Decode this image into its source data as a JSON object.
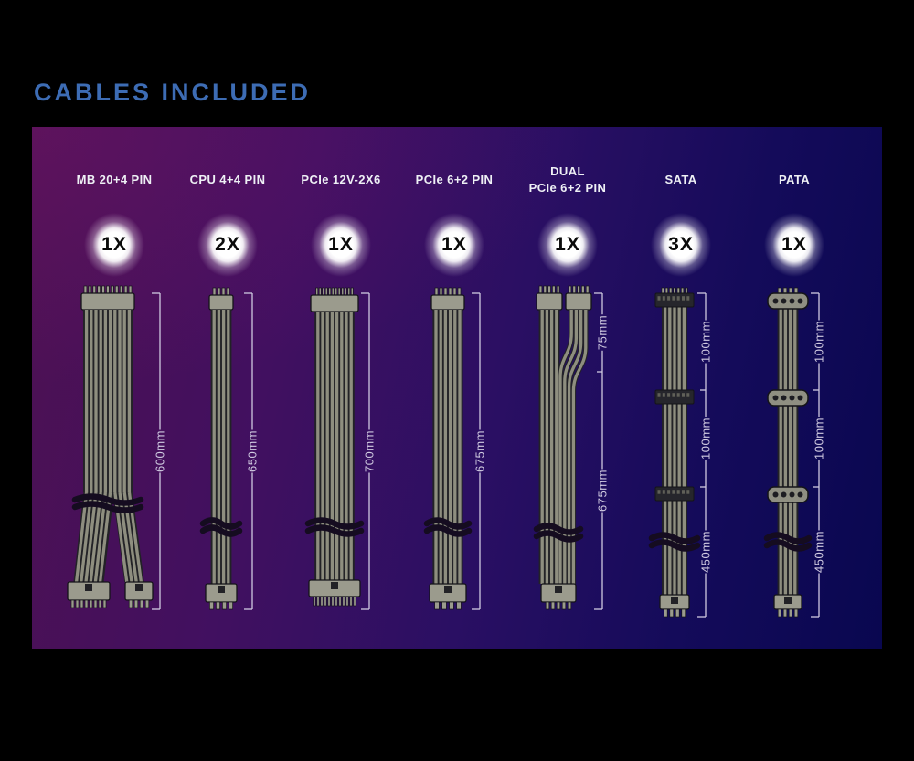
{
  "title": "CABLES INCLUDED",
  "colors": {
    "title": "#3d6cb4",
    "header_text": "#eef0f5",
    "badge_text": "#0a0a0a",
    "strand": "#8e8e7f",
    "strand_gap": "#222226",
    "connector": "#9b9b8d",
    "outline": "#141418",
    "sata_connector": "#26262c",
    "molex_connector": "#8f8f82",
    "tie": "#150c20",
    "measure": "#cfc9e0",
    "panel_left": "#4e1152",
    "panel_right": "#090750"
  },
  "columns": [
    {
      "label": "MB 20+4 PIN",
      "label2": "",
      "qty": "1X",
      "type": "mb",
      "segments": [
        {
          "length": "600mm"
        }
      ]
    },
    {
      "label": "CPU 4+4 PIN",
      "label2": "",
      "qty": "2X",
      "type": "cpu",
      "segments": [
        {
          "length": "650mm"
        }
      ]
    },
    {
      "label": "PCIe 12V-2X6",
      "label2": "",
      "qty": "1X",
      "type": "pcie12v",
      "segments": [
        {
          "length": "700mm"
        }
      ]
    },
    {
      "label": "PCIe 6+2 PIN",
      "label2": "",
      "qty": "1X",
      "type": "pcie",
      "segments": [
        {
          "length": "675mm"
        }
      ]
    },
    {
      "label": "DUAL",
      "label2": "PCIe 6+2 PIN",
      "qty": "1X",
      "type": "dualpcie",
      "segments": [
        {
          "length": "75mm"
        },
        {
          "length": "675mm"
        }
      ]
    },
    {
      "label": "SATA",
      "label2": "",
      "qty": "3X",
      "type": "sata",
      "segments": [
        {
          "length": "100mm"
        },
        {
          "length": "100mm"
        },
        {
          "length": "450mm"
        }
      ]
    },
    {
      "label": "PATA",
      "label2": "",
      "qty": "1X",
      "type": "pata",
      "segments": [
        {
          "length": "100mm"
        },
        {
          "length": "100mm"
        },
        {
          "length": "450mm"
        }
      ]
    }
  ]
}
